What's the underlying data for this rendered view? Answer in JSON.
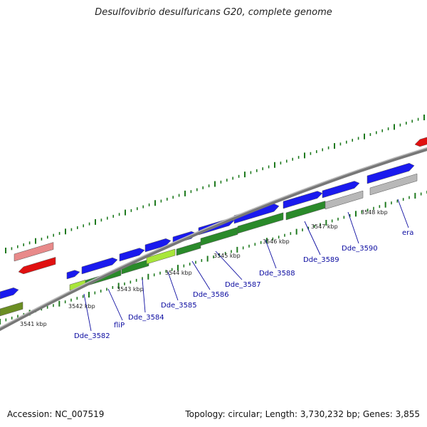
{
  "title": "Desulfovibrio desulfuricans G20, complete genome",
  "footer": {
    "accession": "Accession: NC_007519",
    "topology": "Topology: circular; Length: 3,730,232 bp; Genes: 3,855"
  },
  "colors": {
    "forward_gene": "#1a1aee",
    "reverse_gene_red": "#e01010",
    "reverse_gene_pink": "#e88a8a",
    "cds_green": "#2a8a2a",
    "cds_lime": "#a8e63a",
    "cds_olive": "#6b8e23",
    "pseudo_gray": "#b8b8b8",
    "backbone": "#999999",
    "tick": "#1f7a1f",
    "label": "#0b0ba0"
  },
  "kbp_labels": [
    "3541 kbp",
    "3542 kbp",
    "3543 kbp",
    "3544 kbp",
    "3545 kbp",
    "3546 kbp",
    "3547 kbp",
    "3548 kbp"
  ],
  "gene_labels": [
    "Dde_3582",
    "fliP",
    "Dde_3584",
    "Dde_3585",
    "Dde_3586",
    "Dde_3587",
    "Dde_3588",
    "Dde_3589",
    "Dde_3590",
    "era"
  ]
}
